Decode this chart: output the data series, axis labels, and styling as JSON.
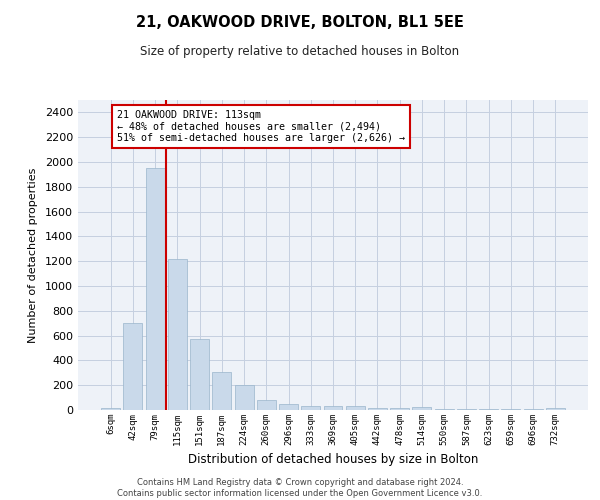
{
  "title": "21, OAKWOOD DRIVE, BOLTON, BL1 5EE",
  "subtitle": "Size of property relative to detached houses in Bolton",
  "xlabel": "Distribution of detached houses by size in Bolton",
  "ylabel": "Number of detached properties",
  "bar_color": "#c9d9ea",
  "bar_edge_color": "#9ab5cc",
  "grid_color": "#c5cfe0",
  "background_color": "#eef2f8",
  "categories": [
    "6sqm",
    "42sqm",
    "79sqm",
    "115sqm",
    "151sqm",
    "187sqm",
    "224sqm",
    "260sqm",
    "296sqm",
    "333sqm",
    "369sqm",
    "405sqm",
    "442sqm",
    "478sqm",
    "514sqm",
    "550sqm",
    "587sqm",
    "623sqm",
    "659sqm",
    "696sqm",
    "732sqm"
  ],
  "values": [
    15,
    700,
    1950,
    1220,
    570,
    305,
    200,
    80,
    45,
    35,
    30,
    30,
    20,
    20,
    25,
    5,
    5,
    5,
    5,
    5,
    20
  ],
  "ylim": [
    0,
    2500
  ],
  "yticks": [
    0,
    200,
    400,
    600,
    800,
    1000,
    1200,
    1400,
    1600,
    1800,
    2000,
    2200,
    2400
  ],
  "property_line_index": 3,
  "annotation_text": "21 OAKWOOD DRIVE: 113sqm\n← 48% of detached houses are smaller (2,494)\n51% of semi-detached houses are larger (2,626) →",
  "annotation_box_color": "#ffffff",
  "annotation_border_color": "#cc0000",
  "footer_line1": "Contains HM Land Registry data © Crown copyright and database right 2024.",
  "footer_line2": "Contains public sector information licensed under the Open Government Licence v3.0."
}
